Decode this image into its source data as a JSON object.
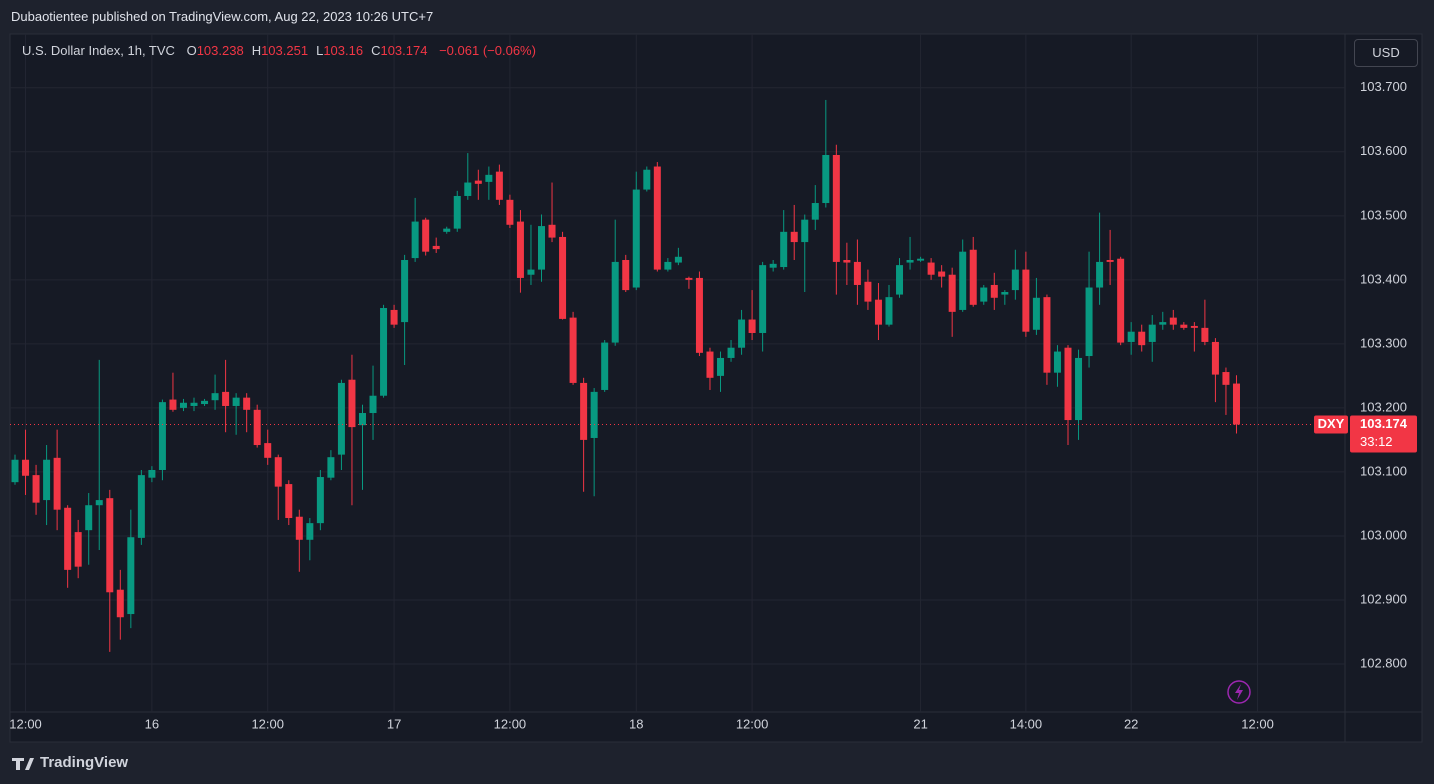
{
  "header": {
    "publisher": "Dubaotientee published on TradingView.com, Aug 22, 2023 10:26 UTC+7"
  },
  "footer": {
    "brand": "TradingView"
  },
  "chart_data": {
    "type": "candlestick",
    "title": "U.S. Dollar Index, 1h, TVC",
    "ohlc_legend": [
      {
        "key": "O",
        "value": 103.238
      },
      {
        "key": "H",
        "value": 103.251
      },
      {
        "key": "L",
        "value": 103.16
      },
      {
        "key": "C",
        "value": 103.174
      }
    ],
    "change": "−0.061 (−0.06%)",
    "currency": "USD",
    "up_color": "#089981",
    "down_color": "#f23645",
    "grid": true,
    "last_symbol": "DXY",
    "last_price": {
      "value": 103.174,
      "label": "103.174"
    },
    "countdown": "33:12",
    "ylim": [
      102.725,
      103.784
    ],
    "yticks": [
      {
        "value": 102.8,
        "label": "102.800"
      },
      {
        "value": 102.9,
        "label": "102.900"
      },
      {
        "value": 103.0,
        "label": "103.000"
      },
      {
        "value": 103.1,
        "label": "103.100"
      },
      {
        "value": 103.2,
        "label": "103.200"
      },
      {
        "value": 103.3,
        "label": "103.300"
      },
      {
        "value": 103.4,
        "label": "103.400"
      },
      {
        "value": 103.5,
        "label": "103.500"
      },
      {
        "value": 103.6,
        "label": "103.600"
      },
      {
        "value": 103.7,
        "label": "103.700"
      }
    ],
    "categories": [
      null,
      "12:00",
      null,
      null,
      null,
      null,
      null,
      null,
      null,
      null,
      null,
      null,
      null,
      "16",
      null,
      null,
      null,
      null,
      null,
      null,
      null,
      null,
      null,
      null,
      "12:00",
      null,
      null,
      null,
      null,
      null,
      null,
      null,
      null,
      null,
      null,
      null,
      "17",
      null,
      null,
      null,
      null,
      null,
      null,
      null,
      null,
      null,
      null,
      "12:00",
      null,
      null,
      null,
      null,
      null,
      null,
      null,
      null,
      null,
      null,
      null,
      "18",
      null,
      null,
      null,
      null,
      null,
      null,
      null,
      null,
      null,
      null,
      "12:00",
      null,
      null,
      null,
      null,
      null,
      null,
      null,
      null,
      null,
      null,
      null,
      null,
      null,
      null,
      null,
      "21",
      null,
      null,
      null,
      null,
      null,
      null,
      null,
      null,
      null,
      "14:00",
      null,
      null,
      null,
      null,
      null,
      null,
      null,
      null,
      null,
      "22",
      null,
      null,
      null,
      null,
      null,
      null,
      null,
      null,
      null,
      null,
      null,
      "12:00"
    ],
    "open": [
      103.084,
      103.119,
      103.095,
      103.056,
      103.122,
      103.044,
      103.006,
      103.009,
      103.048,
      103.059,
      102.916,
      102.878,
      102.997,
      103.091,
      103.103,
      103.213,
      103.2,
      103.203,
      103.206,
      103.212,
      103.225,
      103.203,
      103.216,
      103.197,
      103.145,
      103.123,
      103.081,
      103.03,
      102.994,
      103.02,
      103.091,
      103.127,
      103.244,
      103.173,
      103.192,
      103.219,
      103.353,
      103.334,
      103.434,
      103.494,
      103.453,
      103.475,
      103.48,
      103.531,
      103.555,
      103.553,
      103.569,
      103.525,
      103.491,
      103.408,
      103.416,
      103.486,
      103.467,
      103.341,
      103.239,
      103.153,
      103.228,
      103.302,
      103.431,
      103.388,
      103.541,
      103.577,
      103.416,
      103.427,
      103.403,
      103.403,
      103.288,
      103.25,
      103.278,
      103.294,
      103.338,
      103.317,
      103.419,
      103.42,
      103.475,
      103.459,
      103.494,
      103.52,
      103.595,
      103.431,
      103.428,
      103.397,
      103.369,
      103.33,
      103.377,
      103.427,
      103.43,
      103.427,
      103.413,
      103.408,
      103.353,
      103.447,
      103.366,
      103.392,
      103.377,
      103.384,
      103.416,
      103.322,
      103.373,
      103.255,
      103.294,
      103.181,
      103.281,
      103.388,
      103.431,
      103.433,
      103.303,
      103.319,
      103.303,
      103.33,
      103.341,
      103.33,
      103.328,
      103.325,
      103.303,
      103.256,
      103.238,
      null,
      null
    ],
    "high": [
      103.127,
      103.166,
      103.111,
      103.142,
      103.166,
      103.048,
      103.025,
      103.067,
      103.275,
      103.072,
      102.947,
      103.041,
      103.103,
      103.109,
      103.213,
      103.255,
      103.214,
      103.216,
      103.214,
      103.252,
      103.275,
      103.223,
      103.223,
      103.205,
      103.166,
      103.127,
      103.087,
      103.041,
      103.028,
      103.103,
      103.134,
      103.244,
      103.283,
      103.205,
      103.266,
      103.361,
      103.361,
      103.439,
      103.528,
      103.497,
      103.466,
      103.483,
      103.539,
      103.598,
      103.572,
      103.577,
      103.58,
      103.533,
      103.509,
      103.486,
      103.502,
      103.552,
      103.475,
      103.35,
      103.247,
      103.231,
      103.306,
      103.494,
      103.439,
      103.569,
      103.577,
      103.584,
      103.434,
      103.45,
      103.405,
      103.413,
      103.294,
      103.288,
      103.306,
      103.353,
      103.384,
      103.428,
      103.431,
      103.509,
      103.517,
      103.502,
      103.548,
      103.681,
      103.611,
      103.458,
      103.463,
      103.416,
      103.395,
      103.392,
      103.434,
      103.467,
      103.436,
      103.434,
      103.423,
      103.419,
      103.463,
      103.467,
      103.392,
      103.411,
      103.384,
      103.447,
      103.444,
      103.403,
      103.377,
      103.298,
      103.298,
      103.291,
      103.444,
      103.505,
      103.478,
      103.436,
      103.334,
      103.33,
      103.345,
      103.35,
      103.353,
      103.334,
      103.334,
      103.369,
      103.309,
      103.263,
      103.251,
      null,
      null
    ],
    "low": [
      103.08,
      103.064,
      103.033,
      103.017,
      103.009,
      102.919,
      102.934,
      102.955,
      102.978,
      102.819,
      102.838,
      102.856,
      102.986,
      103.084,
      103.087,
      103.194,
      103.195,
      103.195,
      103.203,
      103.197,
      103.162,
      103.158,
      103.162,
      103.138,
      103.111,
      103.025,
      103.017,
      102.944,
      102.962,
      103.009,
      103.087,
      103.103,
      103.048,
      103.072,
      103.15,
      103.216,
      103.325,
      103.267,
      103.428,
      103.438,
      103.442,
      103.472,
      103.475,
      103.525,
      103.525,
      103.525,
      103.517,
      103.481,
      103.38,
      103.392,
      103.397,
      103.459,
      103.338,
      103.236,
      103.069,
      103.062,
      103.225,
      103.297,
      103.381,
      103.384,
      103.538,
      103.413,
      103.413,
      103.423,
      103.386,
      103.281,
      103.228,
      103.225,
      103.272,
      103.283,
      103.306,
      103.288,
      103.413,
      103.416,
      103.431,
      103.381,
      103.478,
      103.513,
      103.377,
      103.392,
      103.361,
      103.353,
      103.306,
      103.327,
      103.372,
      103.416,
      103.428,
      103.4,
      103.388,
      103.311,
      103.35,
      103.358,
      103.361,
      103.353,
      103.361,
      103.369,
      103.311,
      103.314,
      103.236,
      103.233,
      103.142,
      103.15,
      103.263,
      103.361,
      103.392,
      103.298,
      103.283,
      103.288,
      103.272,
      103.322,
      103.322,
      103.322,
      103.288,
      103.298,
      103.209,
      103.189,
      103.16,
      null,
      null
    ],
    "close": [
      103.119,
      103.094,
      103.052,
      103.119,
      103.041,
      102.947,
      102.952,
      103.048,
      103.056,
      102.912,
      102.873,
      102.998,
      103.095,
      103.103,
      103.209,
      103.197,
      103.208,
      103.208,
      103.211,
      103.223,
      103.203,
      103.216,
      103.197,
      103.142,
      103.122,
      103.077,
      103.028,
      102.994,
      103.02,
      103.092,
      103.123,
      103.239,
      103.17,
      103.192,
      103.219,
      103.356,
      103.33,
      103.431,
      103.491,
      103.444,
      103.448,
      103.48,
      103.531,
      103.552,
      103.55,
      103.564,
      103.525,
      103.486,
      103.403,
      103.416,
      103.484,
      103.466,
      103.339,
      103.239,
      103.15,
      103.225,
      103.302,
      103.428,
      103.384,
      103.541,
      103.572,
      103.416,
      103.428,
      103.436,
      103.4,
      103.286,
      103.247,
      103.278,
      103.294,
      103.338,
      103.317,
      103.423,
      103.425,
      103.475,
      103.459,
      103.494,
      103.52,
      103.595,
      103.428,
      103.427,
      103.392,
      103.366,
      103.33,
      103.373,
      103.423,
      103.431,
      103.433,
      103.408,
      103.405,
      103.35,
      103.444,
      103.361,
      103.388,
      103.372,
      103.381,
      103.416,
      103.319,
      103.372,
      103.255,
      103.288,
      103.181,
      103.278,
      103.388,
      103.428,
      103.428,
      103.302,
      103.319,
      103.298,
      103.33,
      103.334,
      103.33,
      103.325,
      103.325,
      103.303,
      103.252,
      103.236,
      103.174,
      null,
      null
    ]
  }
}
